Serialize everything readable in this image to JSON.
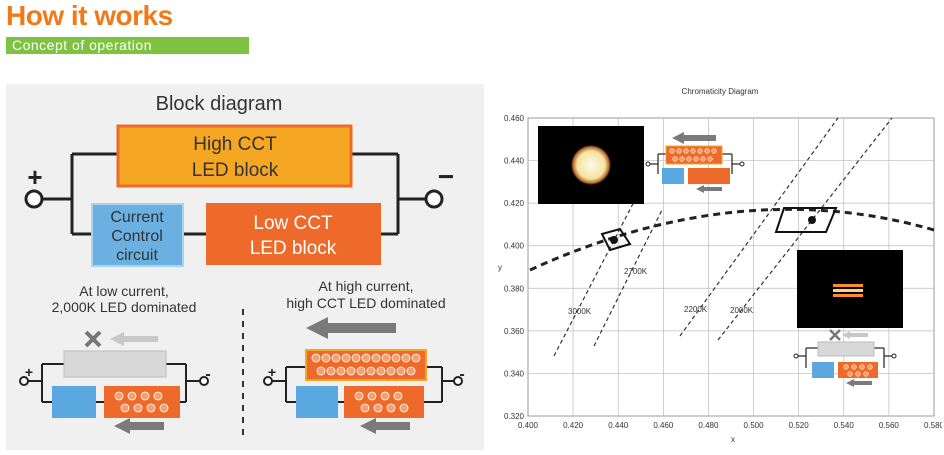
{
  "header": {
    "title": "How it works",
    "subtitle": "Concept of operation"
  },
  "block_diagram": {
    "title": "Block diagram",
    "plus": "+",
    "minus": "−",
    "high_cct_block": [
      "High CCT",
      "LED block"
    ],
    "current_control": [
      "Current",
      "Control",
      "circuit"
    ],
    "low_cct_block": [
      "Low CCT",
      "LED block"
    ],
    "low_current_caption": [
      "At low current,",
      "2,000K LED dominated"
    ],
    "high_current_caption": [
      "At high current,",
      "high CCT LED dominated"
    ],
    "small_plus": "+",
    "small_minus": "-"
  },
  "chromaticity": {
    "title": "Chromaticity Diagram",
    "xlabel": "x",
    "ylabel": "y",
    "x_ticks": [
      "0.400",
      "0.420",
      "0.440",
      "0.460",
      "0.480",
      "0.500",
      "0.520",
      "0.540",
      "0.560",
      "0.580"
    ],
    "y_ticks": [
      "0.460",
      "0.440",
      "0.420",
      "0.400",
      "0.380",
      "0.360",
      "0.340",
      "0.320"
    ],
    "isotherms": [
      "3000K",
      "2700K",
      "2200K",
      "2000K"
    ]
  },
  "colors": {
    "orange_title": "#f07a1a",
    "green_bar": "#7fc241",
    "high_block": "#f5a623",
    "low_block": "#ee6a2a",
    "control_block": "#6ab0e0",
    "gray_block": "#d8d8d8",
    "arrow_gray": "#7a7a7a"
  }
}
